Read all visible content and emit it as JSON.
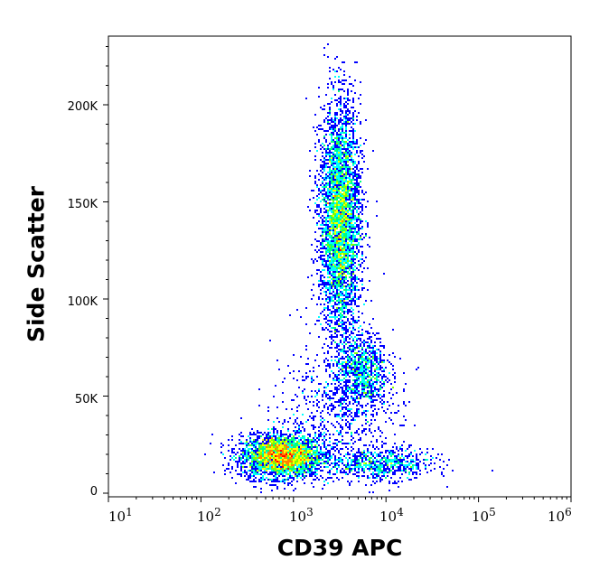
{
  "chart_data": {
    "type": "heatmap",
    "subtype": "flow-cytometry density dot plot",
    "xlabel": "CD39 APC",
    "ylabel": "Side Scatter",
    "xscale": "log",
    "xlim": [
      10,
      1000000
    ],
    "ylim": [
      0,
      236000
    ],
    "x_ticks": [
      {
        "base": "10",
        "exp": "1"
      },
      {
        "base": "10",
        "exp": "2"
      },
      {
        "base": "10",
        "exp": "3"
      },
      {
        "base": "10",
        "exp": "4"
      },
      {
        "base": "10",
        "exp": "5"
      },
      {
        "base": "10",
        "exp": "6"
      }
    ],
    "y_ticks": [
      {
        "value": 0,
        "label": "0"
      },
      {
        "value": 50000,
        "label": "50K"
      },
      {
        "value": 100000,
        "label": "100K"
      },
      {
        "value": 150000,
        "label": "150K"
      },
      {
        "value": 200000,
        "label": "200K"
      }
    ],
    "colormap": [
      "#0000ff",
      "#00a0ff",
      "#00ffff",
      "#00ff80",
      "#80ff00",
      "#ffff00",
      "#ff8000",
      "#ff0000"
    ],
    "grid": false,
    "populations": [
      {
        "cd39_center": 750,
        "cd39_log_sd": 0.22,
        "ssc_center": 19000,
        "ssc_sd": 5500,
        "events": 3200
      },
      {
        "cd39_center": 3200,
        "cd39_log_sd": 0.11,
        "ssc_center": 140000,
        "ssc_sd": 30000,
        "events": 4200
      },
      {
        "cd39_center": 5500,
        "cd39_log_sd": 0.14,
        "ssc_center": 63000,
        "ssc_sd": 10000,
        "events": 900
      },
      {
        "cd39_center": 9000,
        "cd39_log_sd": 0.28,
        "ssc_center": 15000,
        "ssc_sd": 4000,
        "events": 700
      },
      {
        "cd39_center": 3000,
        "cd39_log_sd": 0.35,
        "ssc_center": 40000,
        "ssc_sd": 18000,
        "events": 700
      }
    ]
  }
}
